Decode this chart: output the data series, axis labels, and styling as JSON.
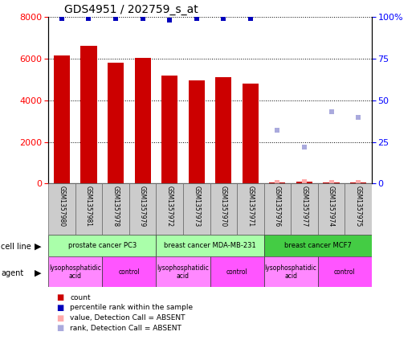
{
  "title": "GDS4951 / 202759_s_at",
  "samples": [
    "GSM1357980",
    "GSM1357981",
    "GSM1357978",
    "GSM1357979",
    "GSM1357972",
    "GSM1357973",
    "GSM1357970",
    "GSM1357971",
    "GSM1357976",
    "GSM1357977",
    "GSM1357974",
    "GSM1357975"
  ],
  "counts": [
    6150,
    6600,
    5800,
    6050,
    5200,
    4950,
    5100,
    4800,
    60,
    80,
    60,
    50
  ],
  "percentile_ranks": [
    99,
    99,
    99,
    99,
    98,
    99,
    99,
    99,
    null,
    null,
    null,
    null
  ],
  "absent_values": [
    null,
    null,
    null,
    null,
    null,
    null,
    null,
    null,
    60,
    80,
    60,
    50
  ],
  "absent_ranks_pct": [
    null,
    null,
    null,
    null,
    null,
    null,
    null,
    null,
    32,
    22,
    43,
    40
  ],
  "cell_lines": [
    {
      "label": "prostate cancer PC3",
      "start": 0,
      "end": 4,
      "color": "#AAFFAA"
    },
    {
      "label": "breast cancer MDA-MB-231",
      "start": 4,
      "end": 8,
      "color": "#AAFFAA"
    },
    {
      "label": "breast cancer MCF7",
      "start": 8,
      "end": 12,
      "color": "#44CC44"
    }
  ],
  "agents": [
    {
      "label": "lysophosphatidic\nacid",
      "start": 0,
      "end": 2,
      "color": "#FF88FF"
    },
    {
      "label": "control",
      "start": 2,
      "end": 4,
      "color": "#FF55FF"
    },
    {
      "label": "lysophosphatidic\nacid",
      "start": 4,
      "end": 6,
      "color": "#FF88FF"
    },
    {
      "label": "control",
      "start": 6,
      "end": 8,
      "color": "#FF55FF"
    },
    {
      "label": "lysophosphatidic\nacid",
      "start": 8,
      "end": 10,
      "color": "#FF88FF"
    },
    {
      "label": "control",
      "start": 10,
      "end": 12,
      "color": "#FF55FF"
    }
  ],
  "ylim_left": [
    0,
    8000
  ],
  "ylim_right": [
    0,
    100
  ],
  "bar_color": "#CC0000",
  "rank_color": "#0000BB",
  "absent_val_color": "#FFAAAA",
  "absent_rank_color": "#AAAADD",
  "legend_items": [
    {
      "color": "#CC0000",
      "label": "count"
    },
    {
      "color": "#0000BB",
      "label": "percentile rank within the sample"
    },
    {
      "color": "#FFAAAA",
      "label": "value, Detection Call = ABSENT"
    },
    {
      "color": "#AAAADD",
      "label": "rank, Detection Call = ABSENT"
    }
  ]
}
